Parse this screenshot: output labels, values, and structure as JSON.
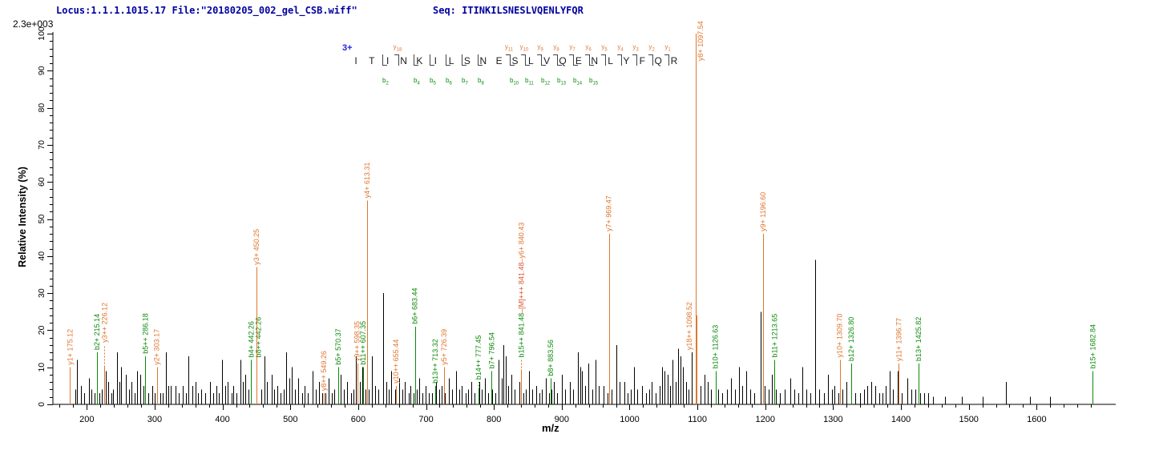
{
  "header": {
    "locus_file": "Locus:1.1.1.1015.17 File:\"20180205_002_gel_CSB.wiff\"",
    "seq_line": "Seq: ITINKILSNESLVQENLYFQR"
  },
  "scale_label": "2.3e+003",
  "colors": {
    "y_ion": "#E0762E",
    "b_ion": "#0B8A0B",
    "precursor": "#D9532B",
    "peak": "#000000",
    "header_text": "#0000A0",
    "charge": "#1F1FE0",
    "axis": "#000000"
  },
  "ladder": {
    "charge_label": "3+",
    "residues": "ITINKILSNESLVQENLYFQR",
    "fragments": [
      {
        "after": 2,
        "b": "b2"
      },
      {
        "after": 3,
        "y": "y18"
      },
      {
        "after": 4,
        "b": "b4"
      },
      {
        "after": 5,
        "b": "b5"
      },
      {
        "after": 6,
        "b": "b6"
      },
      {
        "after": 7,
        "b": "b7"
      },
      {
        "after": 8,
        "b": "b8"
      },
      {
        "after": 10,
        "b": "b10",
        "y": "y11"
      },
      {
        "after": 11,
        "b": "b11",
        "y": "y10"
      },
      {
        "after": 12,
        "b": "b12",
        "y": "y9"
      },
      {
        "after": 13,
        "b": "b13",
        "y": "y8"
      },
      {
        "after": 14,
        "b": "b14",
        "y": "y7"
      },
      {
        "after": 15,
        "b": "b15",
        "y": "y6"
      },
      {
        "after": 16,
        "y": "y5"
      },
      {
        "after": 17,
        "y": "y4"
      },
      {
        "after": 18,
        "y": "y3"
      },
      {
        "after": 19,
        "y": "y2"
      },
      {
        "after": 20,
        "y": "y1"
      }
    ]
  },
  "chart_data": {
    "type": "bar",
    "subtype": "ms2-stick-spectrum",
    "title": "2.3e+003",
    "xlabel": "m/z",
    "ylabel": "Relative Intensity (%)",
    "x_range": [
      150,
      1700
    ],
    "ylim": [
      0,
      100
    ],
    "x_minor_step": 20,
    "y_minor_step": 2,
    "x_tick_labels": [
      200,
      300,
      400,
      500,
      600,
      700,
      800,
      900,
      1000,
      1100,
      1200,
      1300,
      1400,
      1500,
      1600
    ],
    "y_tick_labels": [
      0,
      10,
      20,
      30,
      40,
      50,
      60,
      70,
      80,
      90,
      100
    ],
    "grid": "off",
    "labeled_peaks": [
      {
        "mz": 175.12,
        "i": 10,
        "s": "y",
        "label": "y1+ 175.12"
      },
      {
        "mz": 215.14,
        "i": 14,
        "s": "b",
        "label": "b2+ 215.14"
      },
      {
        "mz": 226.12,
        "i": 10,
        "ly": 16,
        "s": "y",
        "label": "y3++ 226.12"
      },
      {
        "mz": 286.18,
        "i": 13,
        "s": "b",
        "label": "b5++ 286.18"
      },
      {
        "mz": 303.17,
        "i": 10,
        "s": "y",
        "label": "y2+ 303.17"
      },
      {
        "mz": 442.26,
        "i": 12,
        "s": "b",
        "label": "b4+ 442.26"
      },
      {
        "mz": 442.26,
        "i": 12,
        "s": "b",
        "label": "b8++ 442.26",
        "dx": 9,
        "noline": true
      },
      {
        "mz": 450.25,
        "i": 37,
        "s": "y",
        "label": "y3+ 450.25"
      },
      {
        "mz": 549.26,
        "i": 3,
        "s": "y",
        "label": "y8++ 549.26"
      },
      {
        "mz": 570.37,
        "i": 10,
        "s": "b",
        "label": "b5+ 570.37"
      },
      {
        "mz": 598.35,
        "i": 11,
        "s": "y",
        "label": "y9++ 598.35"
      },
      {
        "mz": 607.35,
        "i": 10,
        "s": "b",
        "label": "b11++ 607.35"
      },
      {
        "mz": 613.31,
        "i": 55,
        "s": "y",
        "label": "y4+ 613.31"
      },
      {
        "mz": 655.44,
        "i": 5,
        "s": "y",
        "label": "y10++ 655.44"
      },
      {
        "mz": 683.44,
        "i": 21,
        "s": "b",
        "label": "b6+ 683.44"
      },
      {
        "mz": 713.32,
        "i": 5,
        "s": "b",
        "label": "b13++ 713.32"
      },
      {
        "mz": 726.39,
        "i": 10,
        "s": "y",
        "label": "y5+ 726.39"
      },
      {
        "mz": 777.45,
        "i": 4,
        "ly": 6,
        "s": "b",
        "label": "b14++ 777.45"
      },
      {
        "mz": 796.54,
        "i": 9,
        "s": "b",
        "label": "b7+ 796.54"
      },
      {
        "mz": 840.43,
        "i": 9,
        "ly": 12,
        "s": "y",
        "segments": [
          {
            "t": "b15++ 841.48",
            "s": "b"
          },
          {
            "t": "–[M]+++ 841.48",
            "s": "m"
          },
          {
            "t": "–y6+ 840.43",
            "s": "y"
          }
        ]
      },
      {
        "mz": 883.56,
        "i": 7,
        "s": "b",
        "label": "b8+ 883.56"
      },
      {
        "mz": 969.47,
        "i": 46,
        "s": "y",
        "label": "y7+ 969.47"
      },
      {
        "mz": 1097.54,
        "i": 100,
        "ly": 92,
        "dx": 6,
        "s": "y",
        "label": "y8+ 1097.54"
      },
      {
        "mz": 1098.52,
        "i": 24,
        "ly": 14,
        "dx": -9,
        "s": "y",
        "label": "y18++ 1098.52"
      },
      {
        "mz": 1126.63,
        "i": 9,
        "s": "b",
        "label": "b10+ 1126.63"
      },
      {
        "mz": 1196.6,
        "i": 46,
        "s": "y",
        "label": "y9+ 1196.60"
      },
      {
        "mz": 1213.65,
        "i": 12,
        "s": "b",
        "label": "b11+ 1213.65"
      },
      {
        "mz": 1309.7,
        "i": 12,
        "s": "y",
        "label": "y10+ 1309.70"
      },
      {
        "mz": 1326.8,
        "i": 11,
        "s": "b",
        "label": "b12+ 1326.80"
      },
      {
        "mz": 1396.77,
        "i": 11,
        "s": "y",
        "label": "y11+ 1396.77"
      },
      {
        "mz": 1425.82,
        "i": 11,
        "s": "b",
        "label": "b13+ 1425.82"
      },
      {
        "mz": 1682.84,
        "i": 9,
        "s": "b",
        "label": "b15+ 1682.84"
      }
    ],
    "unlabeled_peaks": [
      [
        183,
        4
      ],
      [
        186,
        12
      ],
      [
        191,
        5
      ],
      [
        196,
        3
      ],
      [
        203,
        7
      ],
      [
        207,
        4
      ],
      [
        212,
        3
      ],
      [
        218,
        3
      ],
      [
        222,
        4
      ],
      [
        228,
        9
      ],
      [
        232,
        6
      ],
      [
        236,
        3
      ],
      [
        239,
        4
      ],
      [
        245,
        14
      ],
      [
        248,
        6
      ],
      [
        251,
        10
      ],
      [
        258,
        8
      ],
      [
        262,
        4
      ],
      [
        266,
        6
      ],
      [
        270,
        3
      ],
      [
        274,
        9
      ],
      [
        279,
        8
      ],
      [
        284,
        5
      ],
      [
        290,
        3
      ],
      [
        296,
        5
      ],
      [
        300,
        3
      ],
      [
        308,
        3
      ],
      [
        312,
        3
      ],
      [
        316,
        14
      ],
      [
        320,
        5
      ],
      [
        324,
        5
      ],
      [
        331,
        5
      ],
      [
        336,
        3
      ],
      [
        341,
        5
      ],
      [
        346,
        3
      ],
      [
        350,
        13
      ],
      [
        355,
        5
      ],
      [
        360,
        6
      ],
      [
        364,
        3
      ],
      [
        368,
        4
      ],
      [
        374,
        3
      ],
      [
        381,
        6
      ],
      [
        386,
        3
      ],
      [
        391,
        5
      ],
      [
        395,
        3
      ],
      [
        399,
        12
      ],
      [
        404,
        5
      ],
      [
        408,
        6
      ],
      [
        413,
        3
      ],
      [
        416,
        5
      ],
      [
        421,
        3
      ],
      [
        426,
        12
      ],
      [
        430,
        6
      ],
      [
        434,
        8
      ],
      [
        438,
        4
      ],
      [
        457,
        4
      ],
      [
        462,
        13
      ],
      [
        466,
        6
      ],
      [
        472,
        8
      ],
      [
        476,
        4
      ],
      [
        481,
        5
      ],
      [
        486,
        3
      ],
      [
        490,
        4
      ],
      [
        494,
        14
      ],
      [
        498,
        7
      ],
      [
        502,
        10
      ],
      [
        507,
        4
      ],
      [
        512,
        7
      ],
      [
        517,
        3
      ],
      [
        521,
        5
      ],
      [
        526,
        3
      ],
      [
        533,
        9
      ],
      [
        538,
        4
      ],
      [
        542,
        6
      ],
      [
        547,
        3
      ],
      [
        552,
        3
      ],
      [
        556,
        7
      ],
      [
        561,
        3
      ],
      [
        565,
        4
      ],
      [
        574,
        8
      ],
      [
        579,
        4
      ],
      [
        584,
        6
      ],
      [
        589,
        3
      ],
      [
        593,
        4
      ],
      [
        597,
        13
      ],
      [
        602,
        6
      ],
      [
        606,
        10
      ],
      [
        611,
        4
      ],
      [
        616,
        4
      ],
      [
        620,
        13
      ],
      [
        625,
        5
      ],
      [
        630,
        4
      ],
      [
        637,
        30
      ],
      [
        642,
        6
      ],
      [
        645,
        4
      ],
      [
        649,
        9
      ],
      [
        654,
        4
      ],
      [
        660,
        7
      ],
      [
        665,
        4
      ],
      [
        669,
        6
      ],
      [
        674,
        3
      ],
      [
        677,
        5
      ],
      [
        682,
        3
      ],
      [
        686,
        4
      ],
      [
        690,
        7
      ],
      [
        695,
        3
      ],
      [
        699,
        5
      ],
      [
        704,
        3
      ],
      [
        709,
        3
      ],
      [
        715,
        6
      ],
      [
        719,
        4
      ],
      [
        723,
        5
      ],
      [
        728,
        3
      ],
      [
        734,
        7
      ],
      [
        738,
        4
      ],
      [
        744,
        9
      ],
      [
        749,
        4
      ],
      [
        753,
        5
      ],
      [
        758,
        3
      ],
      [
        762,
        4
      ],
      [
        767,
        6
      ],
      [
        772,
        3
      ],
      [
        778,
        6
      ],
      [
        782,
        4
      ],
      [
        787,
        7
      ],
      [
        792,
        3
      ],
      [
        797,
        4
      ],
      [
        802,
        3
      ],
      [
        807,
        12
      ],
      [
        811,
        7
      ],
      [
        814,
        16
      ],
      [
        817,
        13
      ],
      [
        821,
        5
      ],
      [
        826,
        8
      ],
      [
        831,
        4
      ],
      [
        838,
        6
      ],
      [
        843,
        3
      ],
      [
        847,
        4
      ],
      [
        852,
        9
      ],
      [
        857,
        4
      ],
      [
        862,
        5
      ],
      [
        867,
        3
      ],
      [
        871,
        4
      ],
      [
        876,
        7
      ],
      [
        881,
        3
      ],
      [
        885,
        4
      ],
      [
        888,
        6
      ],
      [
        893,
        3
      ],
      [
        900,
        8
      ],
      [
        905,
        4
      ],
      [
        912,
        6
      ],
      [
        917,
        4
      ],
      [
        924,
        14
      ],
      [
        927,
        10
      ],
      [
        930,
        9
      ],
      [
        935,
        5
      ],
      [
        939,
        11
      ],
      [
        945,
        4
      ],
      [
        950,
        12
      ],
      [
        955,
        5
      ],
      [
        962,
        5
      ],
      [
        967,
        3
      ],
      [
        973,
        4
      ],
      [
        980,
        16
      ],
      [
        985,
        6
      ],
      [
        992,
        6
      ],
      [
        997,
        3
      ],
      [
        1002,
        4
      ],
      [
        1006,
        10
      ],
      [
        1011,
        4
      ],
      [
        1018,
        5
      ],
      [
        1024,
        3
      ],
      [
        1029,
        4
      ],
      [
        1033,
        6
      ],
      [
        1038,
        3
      ],
      [
        1044,
        5
      ],
      [
        1048,
        10
      ],
      [
        1052,
        9
      ],
      [
        1056,
        8
      ],
      [
        1060,
        5
      ],
      [
        1063,
        12
      ],
      [
        1068,
        6
      ],
      [
        1072,
        15
      ],
      [
        1075,
        13
      ],
      [
        1079,
        10
      ],
      [
        1083,
        6
      ],
      [
        1087,
        4
      ],
      [
        1092,
        14
      ],
      [
        1104,
        5
      ],
      [
        1111,
        8
      ],
      [
        1115,
        6
      ],
      [
        1120,
        4
      ],
      [
        1131,
        4
      ],
      [
        1137,
        3
      ],
      [
        1143,
        4
      ],
      [
        1149,
        7
      ],
      [
        1155,
        4
      ],
      [
        1161,
        10
      ],
      [
        1166,
        5
      ],
      [
        1172,
        9
      ],
      [
        1178,
        4
      ],
      [
        1184,
        3
      ],
      [
        1193,
        25
      ],
      [
        1199,
        5
      ],
      [
        1205,
        4
      ],
      [
        1210,
        8
      ],
      [
        1216,
        4
      ],
      [
        1222,
        3
      ],
      [
        1229,
        4
      ],
      [
        1237,
        7
      ],
      [
        1243,
        4
      ],
      [
        1249,
        3
      ],
      [
        1255,
        10
      ],
      [
        1261,
        4
      ],
      [
        1267,
        3
      ],
      [
        1273,
        39
      ],
      [
        1279,
        4
      ],
      [
        1286,
        3
      ],
      [
        1293,
        8
      ],
      [
        1298,
        4
      ],
      [
        1302,
        5
      ],
      [
        1308,
        3
      ],
      [
        1314,
        4
      ],
      [
        1320,
        6
      ],
      [
        1327,
        4
      ],
      [
        1333,
        3
      ],
      [
        1340,
        3
      ],
      [
        1346,
        4
      ],
      [
        1350,
        5
      ],
      [
        1356,
        6
      ],
      [
        1362,
        5
      ],
      [
        1368,
        3
      ],
      [
        1373,
        3
      ],
      [
        1377,
        5
      ],
      [
        1383,
        9
      ],
      [
        1388,
        4
      ],
      [
        1395,
        9
      ],
      [
        1401,
        3
      ],
      [
        1409,
        7
      ],
      [
        1415,
        4
      ],
      [
        1421,
        4
      ],
      [
        1428,
        3
      ],
      [
        1434,
        3
      ],
      [
        1440,
        3
      ],
      [
        1447,
        2
      ],
      [
        1465,
        2
      ],
      [
        1490,
        2
      ],
      [
        1520,
        2
      ],
      [
        1555,
        6
      ],
      [
        1590,
        2
      ],
      [
        1620,
        2
      ]
    ]
  }
}
